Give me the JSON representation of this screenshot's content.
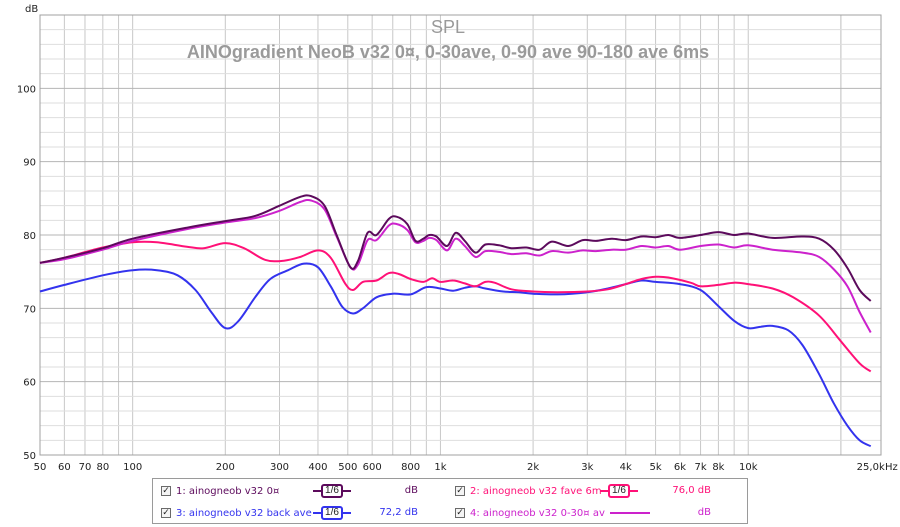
{
  "chart_data": {
    "type": "line",
    "title": "SPL",
    "subtitle": "AINOgradient NeoB v32 0¤, 0-30ave, 0-90 ave 90-180 ave 6ms",
    "ylabel": "dB",
    "xunit": "Hz",
    "xscale": "log",
    "xlim": [
      50,
      27000
    ],
    "ylim": [
      50,
      110
    ],
    "y_ticks": [
      50,
      60,
      70,
      80,
      90,
      100
    ],
    "x_tick_labels": [
      {
        "f": 50,
        "label": "50"
      },
      {
        "f": 60,
        "label": "60"
      },
      {
        "f": 70,
        "label": "70"
      },
      {
        "f": 80,
        "label": "80"
      },
      {
        "f": 100,
        "label": "100"
      },
      {
        "f": 200,
        "label": "200"
      },
      {
        "f": 300,
        "label": "300"
      },
      {
        "f": 400,
        "label": "400"
      },
      {
        "f": 500,
        "label": "500"
      },
      {
        "f": 600,
        "label": "600"
      },
      {
        "f": 800,
        "label": "800"
      },
      {
        "f": 1000,
        "label": "1k"
      },
      {
        "f": 2000,
        "label": "2k"
      },
      {
        "f": 3000,
        "label": "3k"
      },
      {
        "f": 4000,
        "label": "4k"
      },
      {
        "f": 5000,
        "label": "5k"
      },
      {
        "f": 6000,
        "label": "6k"
      },
      {
        "f": 7000,
        "label": "7k"
      },
      {
        "f": 8000,
        "label": "8k"
      },
      {
        "f": 10000,
        "label": "10k"
      },
      {
        "f": 25000,
        "label": "25,0k"
      }
    ],
    "grid": true,
    "legend": "bottom",
    "series": [
      {
        "name": "1: ainogneob v32 0¤",
        "color": "#5c0a5c",
        "points": [
          [
            50,
            76.2
          ],
          [
            60,
            76.9
          ],
          [
            80,
            78.2
          ],
          [
            100,
            79.5
          ],
          [
            150,
            81.0
          ],
          [
            200,
            81.9
          ],
          [
            250,
            82.6
          ],
          [
            300,
            84.0
          ],
          [
            350,
            85.2
          ],
          [
            380,
            85.3
          ],
          [
            420,
            84.0
          ],
          [
            460,
            80.0
          ],
          [
            510,
            75.6
          ],
          [
            540,
            76.5
          ],
          [
            580,
            80.3
          ],
          [
            620,
            80.0
          ],
          [
            680,
            82.2
          ],
          [
            720,
            82.5
          ],
          [
            780,
            81.5
          ],
          [
            830,
            79.2
          ],
          [
            880,
            79.5
          ],
          [
            920,
            80.0
          ],
          [
            970,
            79.8
          ],
          [
            1050,
            78.5
          ],
          [
            1120,
            80.3
          ],
          [
            1200,
            79.2
          ],
          [
            1300,
            77.6
          ],
          [
            1400,
            78.7
          ],
          [
            1550,
            78.6
          ],
          [
            1700,
            78.2
          ],
          [
            1900,
            78.3
          ],
          [
            2100,
            78.0
          ],
          [
            2300,
            79.1
          ],
          [
            2600,
            78.5
          ],
          [
            2900,
            79.3
          ],
          [
            3200,
            79.2
          ],
          [
            3600,
            79.5
          ],
          [
            4000,
            79.3
          ],
          [
            4500,
            79.8
          ],
          [
            5000,
            79.7
          ],
          [
            5500,
            80.0
          ],
          [
            6000,
            79.6
          ],
          [
            7000,
            80.0
          ],
          [
            8000,
            80.4
          ],
          [
            9000,
            80.0
          ],
          [
            10000,
            80.2
          ],
          [
            12000,
            79.6
          ],
          [
            15000,
            79.8
          ],
          [
            17000,
            79.5
          ],
          [
            19000,
            78.0
          ],
          [
            21000,
            75.5
          ],
          [
            23000,
            72.5
          ],
          [
            25000,
            71.0
          ]
        ]
      },
      {
        "name": "2: ainogneob v32 fave 6m",
        "color": "#ff1177",
        "value": "76,0 dB",
        "points": [
          [
            50,
            76.2
          ],
          [
            60,
            76.9
          ],
          [
            80,
            78.3
          ],
          [
            100,
            79.0
          ],
          [
            120,
            79.0
          ],
          [
            150,
            78.4
          ],
          [
            170,
            78.2
          ],
          [
            200,
            78.9
          ],
          [
            230,
            78.2
          ],
          [
            270,
            76.6
          ],
          [
            310,
            76.5
          ],
          [
            350,
            77.0
          ],
          [
            400,
            77.9
          ],
          [
            440,
            76.9
          ],
          [
            490,
            73.4
          ],
          [
            520,
            72.5
          ],
          [
            560,
            73.6
          ],
          [
            620,
            73.8
          ],
          [
            680,
            74.8
          ],
          [
            730,
            74.7
          ],
          [
            800,
            74.0
          ],
          [
            880,
            73.6
          ],
          [
            940,
            74.1
          ],
          [
            1000,
            73.6
          ],
          [
            1100,
            73.8
          ],
          [
            1200,
            73.4
          ],
          [
            1300,
            73.0
          ],
          [
            1400,
            73.6
          ],
          [
            1500,
            73.5
          ],
          [
            1700,
            72.6
          ],
          [
            2000,
            72.3
          ],
          [
            2400,
            72.2
          ],
          [
            3000,
            72.3
          ],
          [
            3500,
            72.6
          ],
          [
            4000,
            73.3
          ],
          [
            4500,
            74.0
          ],
          [
            5000,
            74.3
          ],
          [
            5500,
            74.2
          ],
          [
            6500,
            73.5
          ],
          [
            7000,
            73.0
          ],
          [
            8000,
            73.2
          ],
          [
            9000,
            73.5
          ],
          [
            10000,
            73.3
          ],
          [
            12000,
            72.7
          ],
          [
            14000,
            71.5
          ],
          [
            17000,
            69.0
          ],
          [
            20000,
            65.5
          ],
          [
            23000,
            62.5
          ],
          [
            25000,
            61.4
          ]
        ]
      },
      {
        "name": "3: ainogneob v32 back ave",
        "color": "#3333ee",
        "value": "72,2 dB",
        "points": [
          [
            50,
            72.3
          ],
          [
            60,
            73.2
          ],
          [
            80,
            74.5
          ],
          [
            100,
            75.2
          ],
          [
            120,
            75.2
          ],
          [
            140,
            74.5
          ],
          [
            160,
            72.5
          ],
          [
            180,
            69.5
          ],
          [
            200,
            67.3
          ],
          [
            220,
            68.2
          ],
          [
            250,
            71.5
          ],
          [
            280,
            74.0
          ],
          [
            320,
            75.2
          ],
          [
            360,
            76.1
          ],
          [
            400,
            75.6
          ],
          [
            440,
            73.0
          ],
          [
            480,
            70.2
          ],
          [
            520,
            69.3
          ],
          [
            560,
            70.0
          ],
          [
            620,
            71.5
          ],
          [
            700,
            72.0
          ],
          [
            800,
            71.9
          ],
          [
            900,
            72.9
          ],
          [
            1000,
            72.7
          ],
          [
            1100,
            72.4
          ],
          [
            1200,
            72.8
          ],
          [
            1300,
            73.0
          ],
          [
            1400,
            72.7
          ],
          [
            1600,
            72.3
          ],
          [
            1800,
            72.2
          ],
          [
            2000,
            72.0
          ],
          [
            2400,
            71.9
          ],
          [
            3000,
            72.2
          ],
          [
            3500,
            72.7
          ],
          [
            4000,
            73.3
          ],
          [
            4500,
            73.8
          ],
          [
            5000,
            73.6
          ],
          [
            6000,
            73.3
          ],
          [
            7000,
            72.5
          ],
          [
            8000,
            70.3
          ],
          [
            9000,
            68.3
          ],
          [
            10000,
            67.3
          ],
          [
            11000,
            67.5
          ],
          [
            12000,
            67.6
          ],
          [
            13500,
            67.0
          ],
          [
            15000,
            65.0
          ],
          [
            17000,
            61.0
          ],
          [
            19000,
            57.0
          ],
          [
            21000,
            54.0
          ],
          [
            23000,
            52.0
          ],
          [
            25000,
            51.2
          ]
        ]
      },
      {
        "name": "4: ainogneob v32 0-30¤ av",
        "color": "#cc22cc",
        "points": [
          [
            50,
            76.2
          ],
          [
            60,
            76.7
          ],
          [
            80,
            78.0
          ],
          [
            100,
            79.2
          ],
          [
            150,
            80.8
          ],
          [
            200,
            81.7
          ],
          [
            250,
            82.3
          ],
          [
            300,
            83.3
          ],
          [
            350,
            84.5
          ],
          [
            380,
            84.7
          ],
          [
            420,
            83.5
          ],
          [
            460,
            79.8
          ],
          [
            510,
            75.6
          ],
          [
            540,
            76.0
          ],
          [
            580,
            79.3
          ],
          [
            620,
            79.3
          ],
          [
            680,
            81.3
          ],
          [
            720,
            81.5
          ],
          [
            780,
            80.7
          ],
          [
            830,
            79.0
          ],
          [
            880,
            79.2
          ],
          [
            920,
            79.6
          ],
          [
            970,
            79.3
          ],
          [
            1050,
            77.9
          ],
          [
            1120,
            79.5
          ],
          [
            1200,
            78.5
          ],
          [
            1300,
            77.0
          ],
          [
            1400,
            77.8
          ],
          [
            1550,
            77.7
          ],
          [
            1700,
            77.4
          ],
          [
            1900,
            77.5
          ],
          [
            2100,
            77.2
          ],
          [
            2300,
            77.8
          ],
          [
            2600,
            77.6
          ],
          [
            2900,
            77.9
          ],
          [
            3200,
            77.8
          ],
          [
            3600,
            78.0
          ],
          [
            4000,
            78.0
          ],
          [
            4500,
            78.5
          ],
          [
            5000,
            78.3
          ],
          [
            5500,
            78.5
          ],
          [
            6000,
            78.0
          ],
          [
            7000,
            78.5
          ],
          [
            8000,
            78.7
          ],
          [
            9000,
            78.3
          ],
          [
            10000,
            78.6
          ],
          [
            12000,
            78.0
          ],
          [
            15000,
            77.6
          ],
          [
            17000,
            77.0
          ],
          [
            19000,
            75.3
          ],
          [
            21000,
            73.0
          ],
          [
            23000,
            69.5
          ],
          [
            25000,
            66.7
          ]
        ]
      }
    ]
  },
  "legend_items": [
    {
      "check": "✓",
      "label": "1: ainogneob v32 0¤",
      "smoothing": "1/6",
      "value": "dB",
      "color": "#5c0a5c"
    },
    {
      "check": "✓",
      "label": "2: ainogneob v32 fave 6m",
      "smoothing": "1/6",
      "value": "76,0 dB",
      "color": "#ff1177"
    },
    {
      "check": "✓",
      "label": "3: ainogneob v32 back ave",
      "smoothing": "1/6",
      "value": "72,2 dB",
      "color": "#3333ee"
    },
    {
      "check": "✓",
      "label": "4: ainogneob v32 0-30¤ av",
      "smoothing": "",
      "value": "dB",
      "color": "#cc22cc"
    }
  ]
}
